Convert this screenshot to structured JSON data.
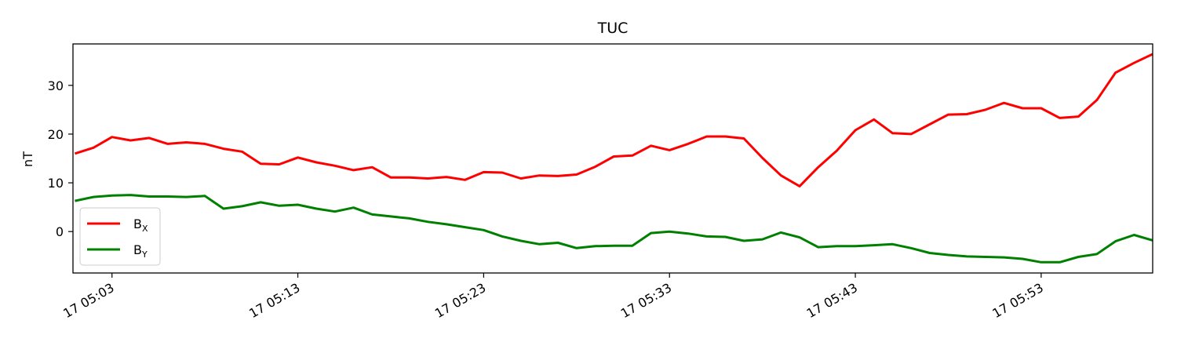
{
  "chart_data": {
    "type": "line",
    "title": "TUC",
    "xlabel": "",
    "ylabel": "nT",
    "xlim": [
      "17 05:01",
      "17 05:59"
    ],
    "ylim": [
      -8.5,
      38.5
    ],
    "x_ticks": [
      "17 05:03",
      "17 05:13",
      "17 05:23",
      "17 05:33",
      "17 05:43",
      "17 05:53"
    ],
    "x_tick_minutes": [
      3,
      13,
      23,
      33,
      43,
      53
    ],
    "y_ticks": [
      0,
      10,
      20,
      30
    ],
    "grid": false,
    "legend_position": "lower-left",
    "x_minutes": [
      1,
      2,
      3,
      4,
      5,
      6,
      7,
      8,
      9,
      10,
      11,
      12,
      13,
      14,
      15,
      16,
      17,
      18,
      19,
      20,
      21,
      22,
      23,
      24,
      25,
      26,
      27,
      28,
      29,
      30,
      31,
      32,
      33,
      34,
      35,
      36,
      37,
      38,
      39,
      40,
      41,
      42,
      43,
      44,
      45,
      46,
      47,
      48,
      49,
      50,
      51,
      52,
      53,
      54,
      55,
      56,
      57,
      58,
      59
    ],
    "series": [
      {
        "name": "B_X",
        "label_main": "B",
        "label_sub": "X",
        "color": "#ff0000",
        "values": [
          16.0,
          17.2,
          19.4,
          18.7,
          19.2,
          18.0,
          18.3,
          18.0,
          17.0,
          16.4,
          13.9,
          13.8,
          15.2,
          14.2,
          13.5,
          12.6,
          13.2,
          11.1,
          11.1,
          10.9,
          11.2,
          10.6,
          12.2,
          12.1,
          10.9,
          11.5,
          11.4,
          11.7,
          13.3,
          15.4,
          15.6,
          17.6,
          16.7,
          18.0,
          19.5,
          19.5,
          19.1,
          15.1,
          11.5,
          9.3,
          13.2,
          16.6,
          20.8,
          23.0,
          20.2,
          20.0,
          22.0,
          24.0,
          24.1,
          25.0,
          26.4,
          25.3,
          25.3,
          23.3,
          23.6,
          27.0,
          32.6,
          34.6,
          36.4
        ]
      },
      {
        "name": "B_Y",
        "label_main": "B",
        "label_sub": "Y",
        "color": "#008000",
        "values": [
          6.3,
          7.1,
          7.4,
          7.5,
          7.2,
          7.2,
          7.1,
          7.3,
          4.7,
          5.2,
          6.0,
          5.3,
          5.5,
          4.7,
          4.1,
          4.9,
          3.5,
          3.1,
          2.7,
          2.0,
          1.5,
          0.9,
          0.3,
          -1.0,
          -1.9,
          -2.6,
          -2.3,
          -3.4,
          -3.0,
          -2.9,
          -2.9,
          -0.3,
          0.0,
          -0.4,
          -1.0,
          -1.1,
          -1.9,
          -1.6,
          -0.2,
          -1.2,
          -3.2,
          -3.0,
          -3.0,
          -2.8,
          -2.6,
          -3.4,
          -4.4,
          -4.8,
          -5.1,
          -5.2,
          -5.3,
          -5.6,
          -6.3,
          -6.3,
          -5.2,
          -4.6,
          -2.0,
          -0.7,
          -1.8
        ]
      }
    ]
  }
}
